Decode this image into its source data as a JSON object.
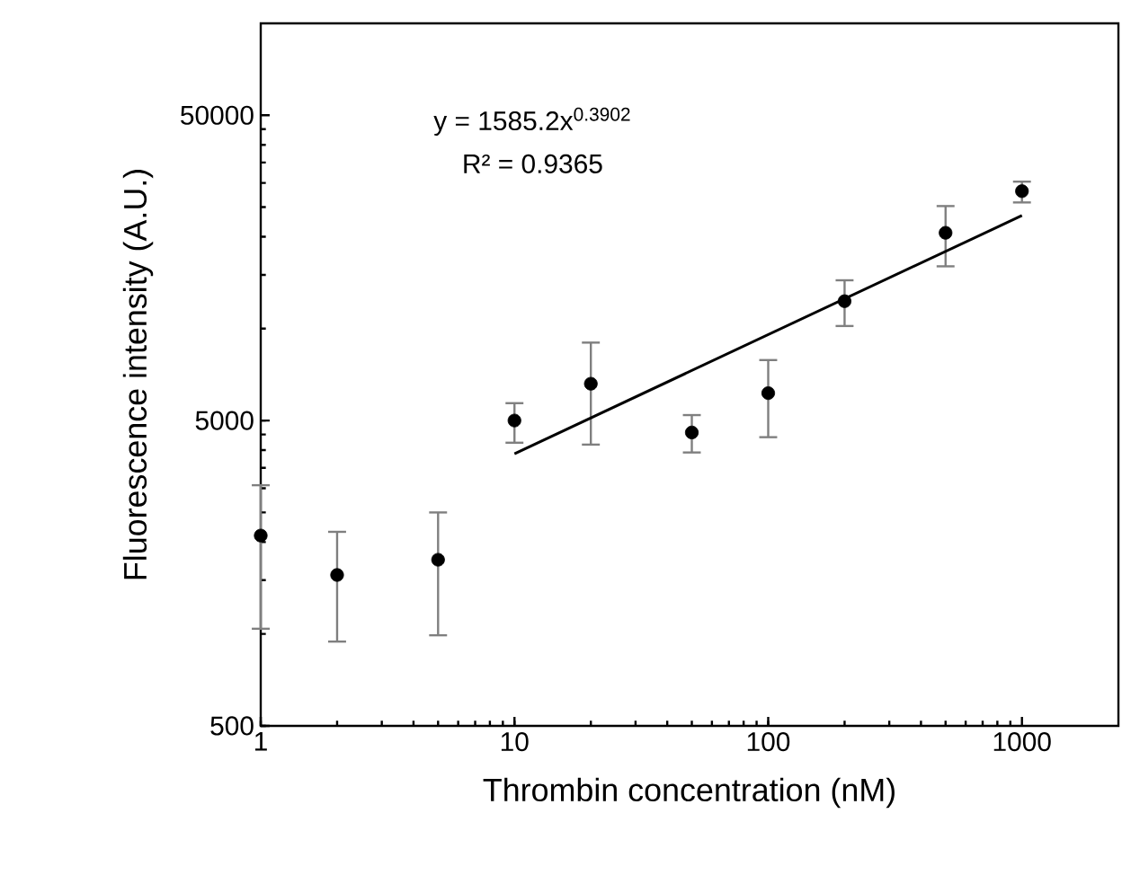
{
  "chart_data": {
    "type": "scatter",
    "xlabel": "Thrombin concentration (nM)",
    "ylabel": "Fluorescence intensity (A.U.)",
    "log": "xy",
    "grid": false,
    "xlim": [
      1,
      2400
    ],
    "ylim": [
      500,
      100000
    ],
    "xticks": [
      1,
      10,
      100,
      1000
    ],
    "yticks": [
      500,
      5000,
      50000
    ],
    "annotations": [
      "y = 1585.2x$^{0.3902}$",
      "R² = 0.9365"
    ],
    "series": [
      {
        "color": "#000000",
        "marker": "circle",
        "x": [
          1,
          2,
          5,
          10,
          20,
          50,
          100,
          200,
          500,
          1000
        ],
        "values": [
          2100,
          1560,
          1750,
          5000,
          6600,
          4570,
          6150,
          12300,
          20600,
          28200
        ],
        "errors": [
          [
            1040,
            3070
          ],
          [
            944,
            2160
          ],
          [
            990,
            2500
          ],
          [
            4230,
            5700
          ],
          [
            4170,
            9000
          ],
          [
            3930,
            5210
          ],
          [
            4410,
            7890
          ],
          [
            10200,
            14400
          ],
          [
            16000,
            25200
          ],
          [
            25900,
            30300
          ]
        ]
      },
      {
        "type": "line",
        "color": "#000000",
        "marker": "none",
        "line_style": "solid",
        "x": [
          10,
          1000
        ],
        "values": [
          3893,
          23460
        ]
      }
    ]
  }
}
